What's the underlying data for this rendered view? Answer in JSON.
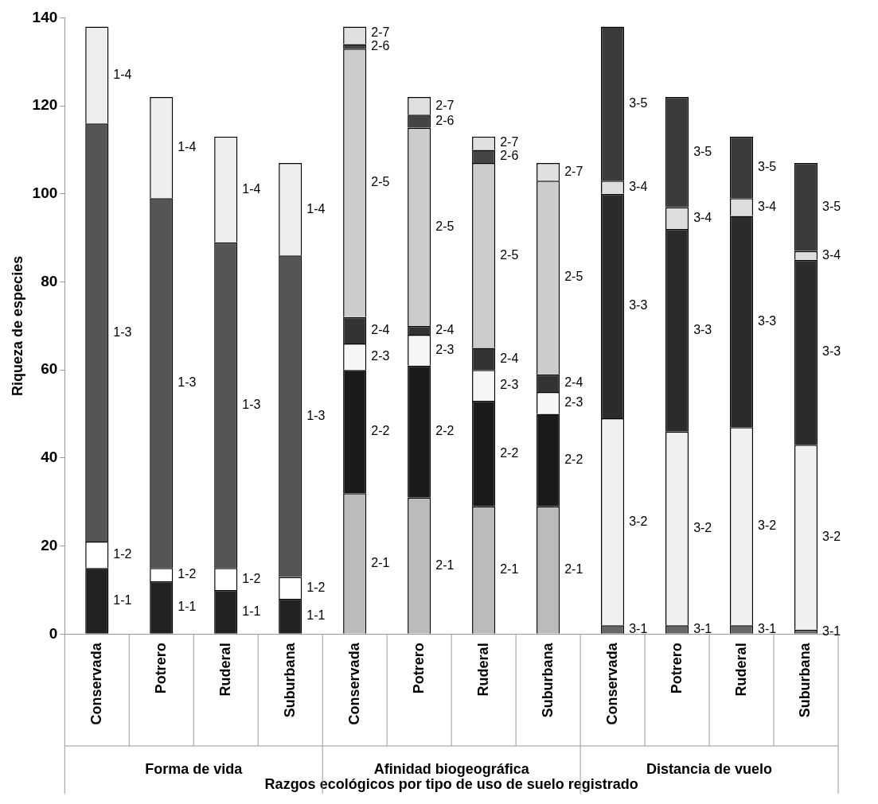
{
  "chart_data": {
    "type": "bar",
    "stacked": true,
    "ylabel": "Riqueza de especies",
    "xlabel": "Razgos ecológicos por tipo de uso de suelo registrado",
    "categories": [
      "Conservada",
      "Potrero",
      "Ruderal",
      "Suburbana",
      "Conservada",
      "Potrero",
      "Ruderal",
      "Suburbana",
      "Conservada",
      "Potrero",
      "Ruderal",
      "Suburbana"
    ],
    "annotations": [
      "Forma de vida",
      "Afinidad biogeográfica",
      "Distancia de vuelo"
    ],
    "ylim": [
      0,
      140
    ],
    "yticks": [
      0,
      20,
      40,
      60,
      80,
      100,
      120,
      140
    ],
    "grid": false,
    "legend": false,
    "series": [
      {
        "name": "1-1",
        "color": "#222222",
        "values": [
          15,
          12,
          10,
          8,
          null,
          null,
          null,
          null,
          null,
          null,
          null,
          null
        ]
      },
      {
        "name": "1-2",
        "color": "#ffffff",
        "values": [
          6,
          3,
          5,
          5,
          null,
          null,
          null,
          null,
          null,
          null,
          null,
          null
        ]
      },
      {
        "name": "1-3",
        "color": "#555555",
        "values": [
          95,
          84,
          74,
          73,
          null,
          null,
          null,
          null,
          null,
          null,
          null,
          null
        ]
      },
      {
        "name": "1-4",
        "color": "#eeeeee",
        "values": [
          22,
          23,
          24,
          21,
          null,
          null,
          null,
          null,
          null,
          null,
          null,
          null
        ]
      },
      {
        "name": "2-1",
        "color": "#bbbbbb",
        "values": [
          null,
          null,
          null,
          null,
          32,
          31,
          29,
          29,
          null,
          null,
          null,
          null
        ]
      },
      {
        "name": "2-2",
        "color": "#1a1a1a",
        "values": [
          null,
          null,
          null,
          null,
          28,
          30,
          24,
          21,
          null,
          null,
          null,
          null
        ]
      },
      {
        "name": "2-3",
        "color": "#f6f6f6",
        "values": [
          null,
          null,
          null,
          null,
          6,
          7,
          7,
          5,
          null,
          null,
          null,
          null
        ]
      },
      {
        "name": "2-4",
        "color": "#333333",
        "values": [
          null,
          null,
          null,
          null,
          6,
          2,
          5,
          4,
          null,
          null,
          null,
          null
        ]
      },
      {
        "name": "2-5",
        "color": "#cccccc",
        "values": [
          null,
          null,
          null,
          null,
          61,
          45,
          42,
          44,
          null,
          null,
          null,
          null
        ]
      },
      {
        "name": "2-6",
        "color": "#444444",
        "values": [
          null,
          null,
          null,
          null,
          1,
          3,
          3,
          null,
          null,
          null,
          null,
          null
        ]
      },
      {
        "name": "2-7",
        "color": "#e0e0e0",
        "values": [
          null,
          null,
          null,
          null,
          4,
          4,
          3,
          4,
          null,
          null,
          null,
          null
        ]
      },
      {
        "name": "3-1",
        "color": "#666666",
        "values": [
          null,
          null,
          null,
          null,
          null,
          null,
          null,
          null,
          2,
          2,
          2,
          1
        ]
      },
      {
        "name": "3-2",
        "color": "#f0f0f0",
        "values": [
          null,
          null,
          null,
          null,
          null,
          null,
          null,
          null,
          47,
          44,
          45,
          42
        ]
      },
      {
        "name": "3-3",
        "color": "#2b2b2b",
        "values": [
          null,
          null,
          null,
          null,
          null,
          null,
          null,
          null,
          51,
          46,
          48,
          42
        ]
      },
      {
        "name": "3-4",
        "color": "#dddddd",
        "values": [
          null,
          null,
          null,
          null,
          null,
          null,
          null,
          null,
          3,
          5,
          4,
          2
        ]
      },
      {
        "name": "3-5",
        "color": "#3a3a3a",
        "values": [
          null,
          null,
          null,
          null,
          null,
          null,
          null,
          null,
          35,
          25,
          14,
          20
        ]
      }
    ]
  }
}
